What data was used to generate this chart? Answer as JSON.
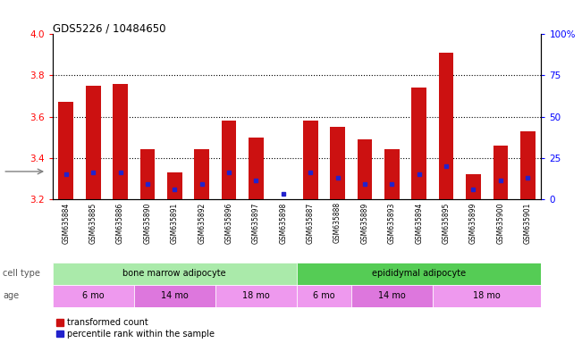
{
  "title": "GDS5226 / 10484650",
  "samples": [
    "GSM635884",
    "GSM635885",
    "GSM635886",
    "GSM635890",
    "GSM635891",
    "GSM635892",
    "GSM635896",
    "GSM635897",
    "GSM635898",
    "GSM635887",
    "GSM635888",
    "GSM635889",
    "GSM635893",
    "GSM635894",
    "GSM635895",
    "GSM635899",
    "GSM635900",
    "GSM635901"
  ],
  "transformed_count": [
    3.67,
    3.75,
    3.76,
    3.44,
    3.33,
    3.44,
    3.58,
    3.5,
    3.2,
    3.58,
    3.55,
    3.49,
    3.44,
    3.74,
    3.91,
    3.32,
    3.46,
    3.53
  ],
  "bar_base": 3.2,
  "percentile_rank": [
    15,
    16,
    16,
    9,
    6,
    9,
    16,
    11,
    3,
    16,
    13,
    9,
    9,
    15,
    20,
    6,
    11,
    13
  ],
  "ylim_left": [
    3.2,
    4.0
  ],
  "ylim_right": [
    0,
    100
  ],
  "yticks_left": [
    3.2,
    3.4,
    3.6,
    3.8,
    4.0
  ],
  "yticks_right": [
    0,
    25,
    50,
    75,
    100
  ],
  "ytick_labels_right": [
    "0",
    "25",
    "50",
    "75",
    "100%"
  ],
  "bar_color": "#cc1111",
  "dot_color": "#2222cc",
  "cell_type_groups": [
    {
      "label": "bone marrow adipocyte",
      "start": 0,
      "end": 9,
      "color": "#aaeaaa"
    },
    {
      "label": "epididymal adipocyte",
      "start": 9,
      "end": 18,
      "color": "#55cc55"
    }
  ],
  "age_groups": [
    {
      "label": "6 mo",
      "start": 0,
      "end": 3,
      "color": "#ee99ee"
    },
    {
      "label": "14 mo",
      "start": 3,
      "end": 6,
      "color": "#dd77dd"
    },
    {
      "label": "18 mo",
      "start": 6,
      "end": 9,
      "color": "#ee99ee"
    },
    {
      "label": "6 mo",
      "start": 9,
      "end": 11,
      "color": "#ee99ee"
    },
    {
      "label": "14 mo",
      "start": 11,
      "end": 14,
      "color": "#dd77dd"
    },
    {
      "label": "18 mo",
      "start": 14,
      "end": 18,
      "color": "#ee99ee"
    }
  ],
  "cell_type_label": "cell type",
  "age_label": "age",
  "legend_items": [
    {
      "label": "transformed count",
      "color": "#cc1111"
    },
    {
      "label": "percentile rank within the sample",
      "color": "#2222cc"
    }
  ],
  "background_color": "#f0f0f0"
}
